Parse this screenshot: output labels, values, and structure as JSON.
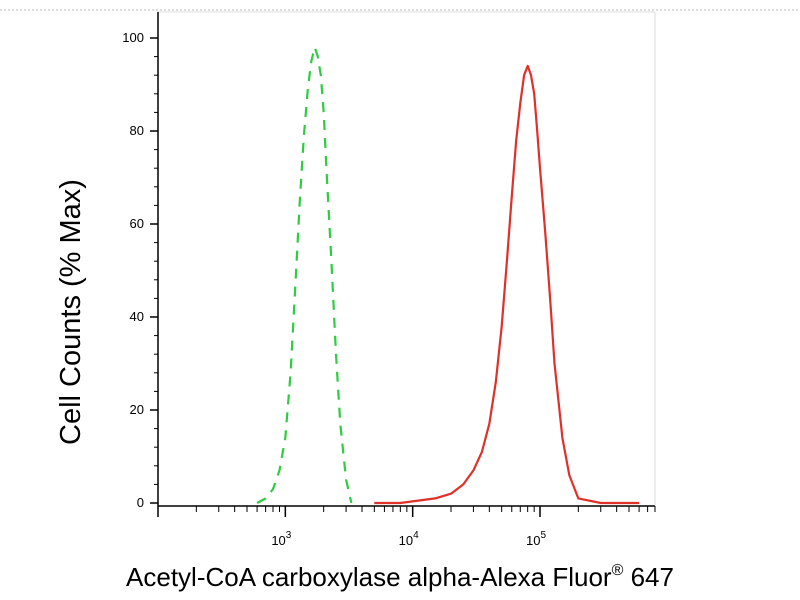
{
  "chart_data": {
    "type": "line",
    "title": "",
    "xlabel": "Acetyl-CoA carboxylase alpha-Alexa Fluor",
    "xlabel_superscript": "®",
    "xlabel_suffix": " 647",
    "ylabel": "Cell Counts (% Max)",
    "x_scale": "log",
    "xlim": [
      100,
      800000
    ],
    "ylim": [
      0,
      100
    ],
    "y_ticks": [
      0,
      20,
      40,
      60,
      80,
      100
    ],
    "y_tick_labels": [
      "0",
      "20",
      "40",
      "60",
      "80",
      "100"
    ],
    "x_major_ticks": [
      1000,
      10000,
      100000
    ],
    "x_tick_labels": [
      {
        "base": "10",
        "exp": "3"
      },
      {
        "base": "10",
        "exp": "4"
      },
      {
        "base": "10",
        "exp": "5"
      }
    ],
    "grid": false,
    "legend": "none",
    "series": [
      {
        "color": "#2ecc40",
        "dash": "dashed",
        "x": [
          600,
          700,
          800,
          900,
          1000,
          1100,
          1200,
          1300,
          1400,
          1500,
          1600,
          1700,
          1800,
          1900,
          2000,
          2100,
          2300,
          2500,
          2700,
          3000,
          3300
        ],
        "y": [
          0,
          1,
          3,
          7,
          14,
          28,
          47,
          65,
          79,
          89,
          95,
          98,
          96,
          92,
          84,
          72,
          52,
          32,
          17,
          5,
          0
        ]
      },
      {
        "color": "#e0302a",
        "dash": "solid",
        "x": [
          5000,
          8000,
          15000,
          20000,
          25000,
          30000,
          35000,
          40000,
          45000,
          50000,
          55000,
          60000,
          65000,
          70000,
          75000,
          80000,
          85000,
          90000,
          95000,
          100000,
          110000,
          120000,
          130000,
          150000,
          170000,
          200000,
          300000,
          600000
        ],
        "y": [
          0,
          0,
          1,
          2,
          4,
          7,
          11,
          17,
          26,
          38,
          52,
          66,
          78,
          86,
          92,
          94,
          92,
          88,
          80,
          72,
          58,
          44,
          30,
          14,
          6,
          1,
          0,
          0
        ]
      }
    ]
  }
}
